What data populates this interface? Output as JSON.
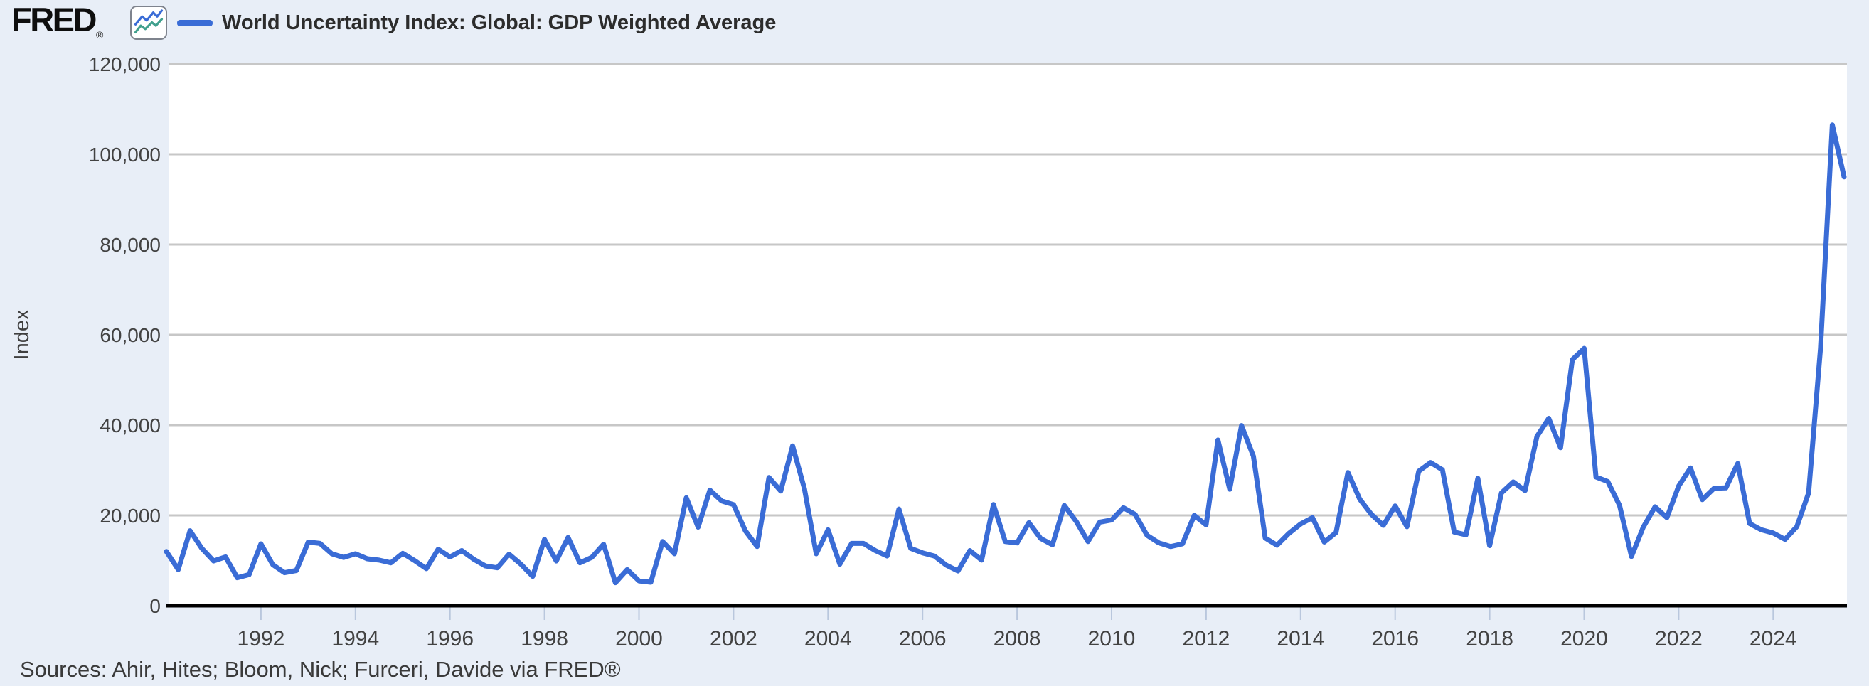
{
  "page": {
    "background_color": "#e8eef7"
  },
  "header": {
    "logo_text": "FRED",
    "logo_registered": "®",
    "logo_icon": "fred-sparkline-icon",
    "legend": {
      "swatch_color": "#3a6cd6",
      "label": "World Uncertainty Index: Global: GDP Weighted Average"
    }
  },
  "footer": {
    "sources": "Sources: Ahir, Hites; Bloom, Nick; Furceri, Davide via FRED®"
  },
  "style": {
    "line_color": "#3a6cd6",
    "icon_line_blue": "#3a6cd6",
    "icon_line_teal": "#41a08e",
    "gridline_color": "#c7c7c7",
    "axis_color": "#000000",
    "tick_mark_color": "#b9c7dd",
    "tick_label_color": "#424242",
    "plot_background": "#ffffff"
  },
  "chart_data": {
    "type": "line",
    "title": "World Uncertainty Index: Global: GDP Weighted Average",
    "xlabel": "",
    "ylabel": "Index",
    "ylim": [
      0,
      120000
    ],
    "xlim": [
      1990,
      2025.75
    ],
    "grid": true,
    "legend_position": "top-left",
    "y_ticks": {
      "values": [
        0,
        20000,
        40000,
        60000,
        80000,
        100000,
        120000
      ],
      "labels": [
        "0",
        "20,000",
        "40,000",
        "60,000",
        "80,000",
        "100,000",
        "120,000"
      ]
    },
    "x_ticks": [
      1992,
      1994,
      1996,
      1998,
      2000,
      2002,
      2004,
      2006,
      2008,
      2010,
      2012,
      2014,
      2016,
      2018,
      2020,
      2022,
      2024
    ],
    "x_start_year": 1990,
    "x_step_years": 0.25,
    "series": [
      {
        "name": "World Uncertainty Index: Global: GDP Weighted Average",
        "color": "#3a6cd6",
        "values": [
          12000,
          8000,
          16600,
          12700,
          9900,
          10800,
          6200,
          6900,
          13700,
          9100,
          7300,
          7800,
          14100,
          13800,
          11500,
          10700,
          11500,
          10400,
          10100,
          9500,
          11600,
          10000,
          8200,
          12500,
          10800,
          12200,
          10300,
          8800,
          8400,
          11400,
          9200,
          6500,
          14700,
          9900,
          15100,
          9500,
          10700,
          13600,
          5100,
          8000,
          5500,
          5200,
          14200,
          11500,
          23900,
          17400,
          25600,
          23200,
          22400,
          16600,
          13100,
          28400,
          25400,
          35400,
          25900,
          11500,
          16800,
          9200,
          13800,
          13800,
          12200,
          11000,
          21400,
          12700,
          11700,
          11000,
          9000,
          7700,
          12200,
          10100,
          22400,
          14200,
          13900,
          18400,
          14900,
          13500,
          22200,
          18700,
          14200,
          18500,
          19000,
          21700,
          20200,
          15600,
          13900,
          13100,
          13700,
          20000,
          17900,
          36700,
          25800,
          39900,
          33100,
          15000,
          13400,
          16000,
          18100,
          19500,
          14100,
          16200,
          29500,
          23600,
          20200,
          17800,
          22100,
          17500,
          29800,
          31700,
          30100,
          16300,
          15700,
          28200,
          13300,
          25000,
          27400,
          25500,
          37500,
          41500,
          35000,
          54500,
          57000,
          28500,
          27500,
          22200,
          10900,
          17400,
          21900,
          19500,
          26500,
          30500,
          23500,
          26000,
          26100,
          31500,
          18200,
          16800,
          16100,
          14700,
          17500,
          25000,
          57000,
          106500,
          95000
        ]
      }
    ]
  }
}
